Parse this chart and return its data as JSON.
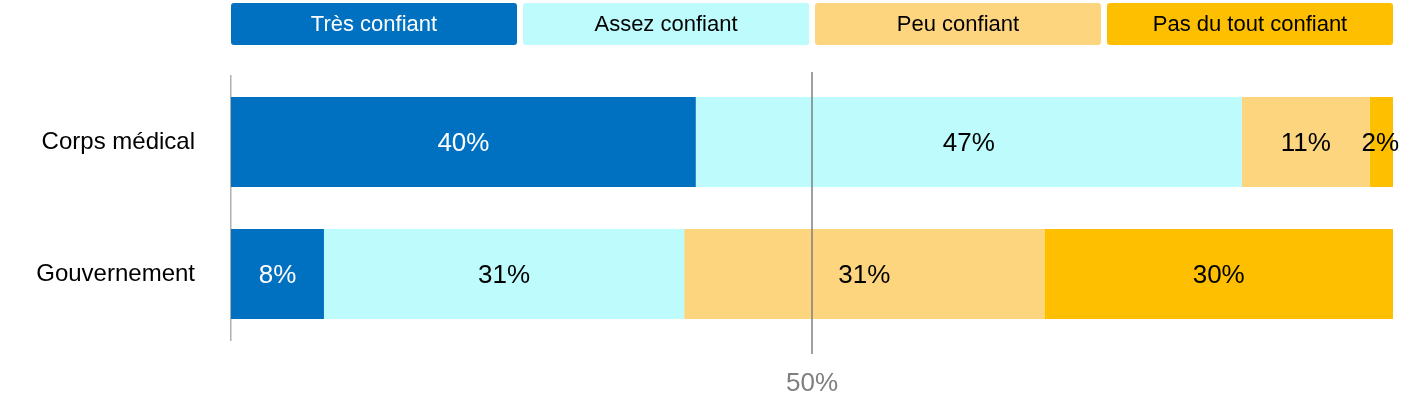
{
  "chart_data": {
    "type": "bar",
    "orientation": "horizontal",
    "stacked": true,
    "categories": [
      "Corps médical",
      "Gouvernement"
    ],
    "series": [
      {
        "name": "Très confiant",
        "color": "#0070c0",
        "values": [
          40,
          8
        ],
        "value_labels": [
          "40%",
          "8%"
        ]
      },
      {
        "name": "Assez confiant",
        "color": "#bdfbfc",
        "values": [
          47,
          31
        ],
        "value_labels": [
          "47%",
          "31%"
        ]
      },
      {
        "name": "Peu confiant",
        "color": "#fdd57e",
        "values": [
          11,
          31
        ],
        "value_labels": [
          "11%",
          "31%"
        ]
      },
      {
        "name": "Pas du tout confiant",
        "color": "#fdbf00",
        "values": [
          2,
          30
        ],
        "value_labels": [
          "2%",
          "30%"
        ]
      }
    ],
    "tick_labels": "y",
    "legend": "top",
    "ref_lines": [
      {
        "axis": "x",
        "value": 50,
        "label": "50%",
        "color": "#7f7f7f"
      }
    ]
  }
}
